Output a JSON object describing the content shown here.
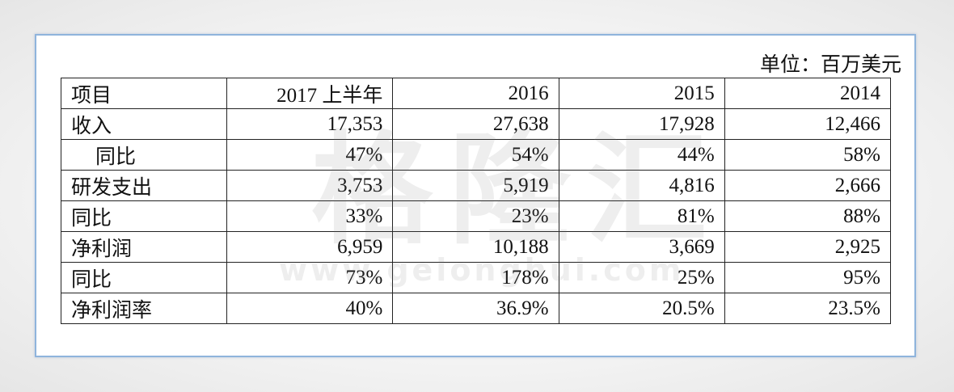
{
  "unit": "单位：百万美元",
  "table": {
    "header": [
      "项目",
      "2017 上半年",
      "2016",
      "2015",
      "2014"
    ],
    "rows": [
      [
        "收入",
        "17,353",
        "27,638",
        "17,928",
        "12,466"
      ],
      [
        "同比",
        "47%",
        "54%",
        "44%",
        "58%"
      ],
      [
        "研发支出",
        "3,753",
        "5,919",
        "4,816",
        "2,666"
      ],
      [
        "同比",
        "33%",
        "23%",
        "81%",
        "88%"
      ],
      [
        "净利润",
        "6,959",
        "10,188",
        "3,669",
        "2,925"
      ],
      [
        "同比",
        "73%",
        "178%",
        "25%",
        "95%"
      ],
      [
        "净利润率",
        "40%",
        "36.9%",
        "20.5%",
        "23.5%"
      ]
    ]
  },
  "watermark": {
    "logo": "格隆汇",
    "url": "www.gelonghui.com"
  }
}
